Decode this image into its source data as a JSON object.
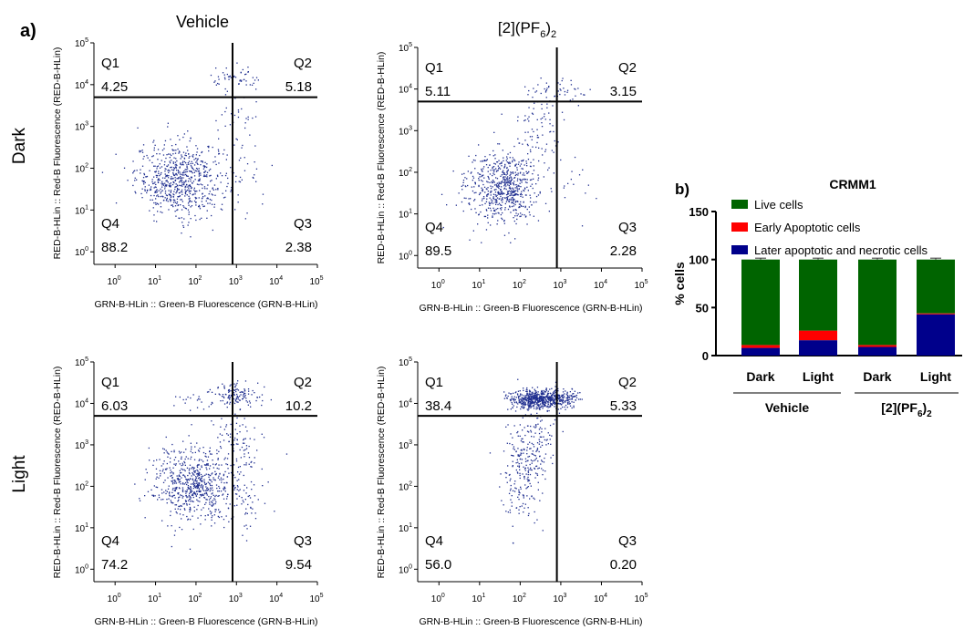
{
  "panel_a_label": "a)",
  "panel_b_label": "b)",
  "column_headers": {
    "vehicle": "Vehicle",
    "compound_prefix": "[2](PF",
    "compound_subscript1": "6",
    "compound_close": ")",
    "compound_subscript2": "2"
  },
  "row_headers": {
    "dark": "Dark",
    "light": "Light"
  },
  "flow_axis": {
    "xlabel": "GRN-B-HLin :: Green-B Fluorescence (GRN-B-HLin)",
    "ylabel": "RED-B-HLin :: Red-B Fluorescence (RED-B-HLin)",
    "tick_base": "10",
    "tick_exponents": [
      "0",
      "1",
      "2",
      "3",
      "4",
      "5"
    ]
  },
  "colors": {
    "dot": "#1f2e8f",
    "live": "#006400",
    "early": "#ff0000",
    "late": "#00008b",
    "axis": "#000000"
  },
  "chart_data": [
    {
      "type": "scatter",
      "panel": "Vehicle / Dark",
      "xlabel": "GRN-B-HLin :: Green-B Fluorescence (GRN-B-HLin)",
      "ylabel": "RED-B-HLin :: Red-B Fluorescence (RED-B-HLin)",
      "scale": "log",
      "xlim": [
        0.3,
        100000
      ],
      "ylim": [
        0.5,
        100000
      ],
      "gate": {
        "x": 800,
        "y": 5000
      },
      "quadrants": [
        {
          "name": "Q1",
          "value": "4.25"
        },
        {
          "name": "Q2",
          "value": "5.18"
        },
        {
          "name": "Q3",
          "value": "2.38"
        },
        {
          "name": "Q4",
          "value": "88.2"
        }
      ],
      "clusters": [
        {
          "cx": 1.6,
          "cy": 1.75,
          "sx": 0.55,
          "sy": 0.45,
          "n": 700
        },
        {
          "cx": 3.0,
          "cy": 4.15,
          "sx": 0.3,
          "sy": 0.12,
          "n": 50
        },
        {
          "cx": 3.0,
          "cy": 3.0,
          "sx": 0.3,
          "sy": 0.6,
          "n": 40
        },
        {
          "cx": 3.3,
          "cy": 1.8,
          "sx": 0.3,
          "sy": 0.4,
          "n": 20
        }
      ]
    },
    {
      "type": "scatter",
      "panel": "[2](PF6)2 / Dark",
      "xlabel": "GRN-B-HLin :: Green-B Fluorescence (GRN-B-HLin)",
      "ylabel": "RED-B-HLin :: Red-B Fluorescence (RED-B-HLin)",
      "scale": "log",
      "xlim": [
        0.3,
        100000
      ],
      "ylim": [
        0.5,
        100000
      ],
      "gate": {
        "x": 800,
        "y": 5000
      },
      "quadrants": [
        {
          "name": "Q1",
          "value": "5.11"
        },
        {
          "name": "Q2",
          "value": "3.15"
        },
        {
          "name": "Q3",
          "value": "2.28"
        },
        {
          "name": "Q4",
          "value": "89.5"
        }
      ],
      "clusters": [
        {
          "cx": 1.55,
          "cy": 1.65,
          "sx": 0.45,
          "sy": 0.42,
          "n": 650
        },
        {
          "cx": 2.4,
          "cy": 3.2,
          "sx": 0.35,
          "sy": 0.45,
          "n": 80
        },
        {
          "cx": 2.9,
          "cy": 4.0,
          "sx": 0.35,
          "sy": 0.15,
          "n": 40
        },
        {
          "cx": 3.2,
          "cy": 1.8,
          "sx": 0.3,
          "sy": 0.4,
          "n": 15
        }
      ]
    },
    {
      "type": "scatter",
      "panel": "Vehicle / Light",
      "xlabel": "GRN-B-HLin :: Green-B Fluorescence (GRN-B-HLin)",
      "ylabel": "RED-B-HLin :: Red-B Fluorescence (RED-B-HLin)",
      "scale": "log",
      "xlim": [
        0.3,
        100000
      ],
      "ylim": [
        0.5,
        100000
      ],
      "gate": {
        "x": 800,
        "y": 5000
      },
      "quadrants": [
        {
          "name": "Q1",
          "value": "6.03"
        },
        {
          "name": "Q2",
          "value": "10.2"
        },
        {
          "name": "Q3",
          "value": "9.54"
        },
        {
          "name": "Q4",
          "value": "74.2"
        }
      ],
      "clusters": [
        {
          "cx": 1.9,
          "cy": 2.05,
          "sx": 0.5,
          "sy": 0.45,
          "n": 650
        },
        {
          "cx": 3.0,
          "cy": 4.2,
          "sx": 0.3,
          "sy": 0.15,
          "n": 120
        },
        {
          "cx": 3.0,
          "cy": 3.0,
          "sx": 0.3,
          "sy": 0.5,
          "n": 100
        },
        {
          "cx": 3.2,
          "cy": 1.8,
          "sx": 0.3,
          "sy": 0.45,
          "n": 60
        },
        {
          "cx": 2.0,
          "cy": 4.1,
          "sx": 0.3,
          "sy": 0.1,
          "n": 20
        }
      ]
    },
    {
      "type": "scatter",
      "panel": "[2](PF6)2 / Light",
      "xlabel": "GRN-B-HLin :: Green-B Fluorescence (GRN-B-HLin)",
      "ylabel": "RED-B-HLin :: Red-B Fluorescence (RED-B-HLin)",
      "scale": "log",
      "xlim": [
        0.3,
        100000
      ],
      "ylim": [
        0.5,
        100000
      ],
      "gate": {
        "x": 800,
        "y": 5000
      },
      "quadrants": [
        {
          "name": "Q1",
          "value": "38.4"
        },
        {
          "name": "Q2",
          "value": "5.33"
        },
        {
          "name": "Q3",
          "value": "0.20"
        },
        {
          "name": "Q4",
          "value": "56.0"
        }
      ],
      "clusters": [
        {
          "cx": 2.45,
          "cy": 4.1,
          "sx": 0.35,
          "sy": 0.12,
          "n": 600
        },
        {
          "cx": 2.2,
          "cy": 3.0,
          "sx": 0.3,
          "sy": 0.5,
          "n": 180
        },
        {
          "cx": 2.0,
          "cy": 2.0,
          "sx": 0.25,
          "sy": 0.5,
          "n": 120
        },
        {
          "cx": 3.0,
          "cy": 4.15,
          "sx": 0.2,
          "sy": 0.1,
          "n": 80
        }
      ]
    },
    {
      "type": "bar",
      "stacked": true,
      "title": "CRMM1",
      "ylabel": "% cells",
      "ylim": [
        0,
        150
      ],
      "yticks": [
        "0",
        "50",
        "100",
        "150"
      ],
      "categories": [
        "Dark",
        "Light",
        "Dark",
        "Light"
      ],
      "groups": [
        {
          "label": "Vehicle",
          "categories": [
            0,
            1
          ]
        },
        {
          "label_prefix": "[2](PF",
          "sub1": "6",
          "label_close": ")",
          "sub2": "2",
          "categories": [
            2,
            3
          ]
        }
      ],
      "legend_position": "top-right",
      "series": [
        {
          "name": "Later apoptotic and necrotic cells",
          "values": [
            8,
            16,
            9,
            43
          ]
        },
        {
          "name": "Early Apoptotic cells",
          "values": [
            3,
            10,
            2,
            1
          ]
        },
        {
          "name": "Live cells",
          "values": [
            89,
            74,
            89,
            56
          ]
        }
      ]
    }
  ]
}
